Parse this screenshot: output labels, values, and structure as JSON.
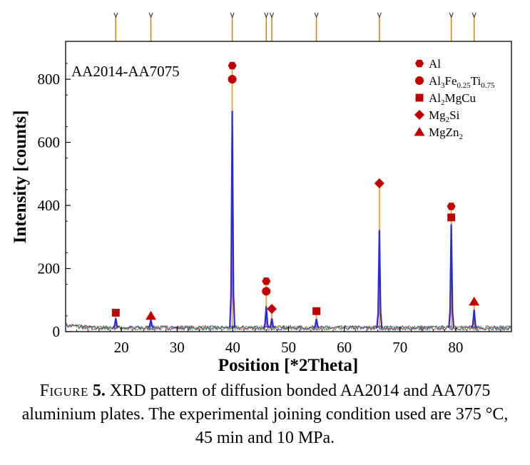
{
  "chart_data": {
    "type": "line",
    "title": "AA2014-AA7075",
    "xlabel": "Position [*2Theta]",
    "ylabel": "Intensity [counts]",
    "xlim": [
      10,
      90
    ],
    "ylim": [
      0,
      920
    ],
    "x_ticks": [
      20,
      30,
      40,
      50,
      60,
      70,
      80
    ],
    "y_ticks": [
      0,
      200,
      400,
      600,
      800
    ],
    "grid": false,
    "legend_position": "top-right",
    "baseline": 12,
    "series": [
      {
        "color": "#3333cc"
      },
      {
        "color": "#c0392b"
      },
      {
        "color": "#2e8b3d"
      }
    ],
    "peaks": [
      {
        "x": 19.0,
        "y": 42,
        "markers": [
          {
            "phase": "Al2MgCu",
            "y": 60
          }
        ]
      },
      {
        "x": 25.3,
        "y": 38,
        "markers": [
          {
            "phase": "MgZn2",
            "y": 50
          }
        ]
      },
      {
        "x": 39.9,
        "y": 700,
        "markers": [
          {
            "phase": "Al3Fe0.25Ti0.75",
            "y": 800
          },
          {
            "phase": "Al",
            "y": 843
          }
        ]
      },
      {
        "x": 46.0,
        "y": 80,
        "markers": [
          {
            "phase": "Al3Fe0.25Ti0.75",
            "y": 128
          },
          {
            "phase": "Al",
            "y": 160
          }
        ]
      },
      {
        "x": 47.0,
        "y": 42,
        "markers": [
          {
            "phase": "Mg2Si",
            "y": 72
          }
        ]
      },
      {
        "x": 55.0,
        "y": 40,
        "markers": [
          {
            "phase": "Al2MgCu",
            "y": 65
          }
        ]
      },
      {
        "x": 66.3,
        "y": 322,
        "markers": [
          {
            "phase": "Mg2Si",
            "y": 470
          }
        ]
      },
      {
        "x": 79.2,
        "y": 340,
        "markers": [
          {
            "phase": "Al2MgCu",
            "y": 362
          },
          {
            "phase": "Al",
            "y": 397
          }
        ]
      },
      {
        "x": 83.3,
        "y": 70,
        "markers": [
          {
            "phase": "MgZn2",
            "y": 95
          }
        ]
      }
    ],
    "reference_ticks": [
      19.0,
      25.3,
      39.9,
      46.0,
      47.0,
      55.0,
      66.3,
      79.2,
      83.3
    ],
    "legend": [
      {
        "phase": "Al",
        "shape": "hexagon",
        "label": "Al",
        "sub": []
      },
      {
        "phase": "Al3Fe0.25Ti0.75",
        "shape": "circle",
        "label": "Al",
        "sub": [
          [
            "3",
            "Fe"
          ],
          [
            "0.25",
            "Ti"
          ],
          [
            "0.75",
            ""
          ]
        ]
      },
      {
        "phase": "Al2MgCu",
        "shape": "square",
        "label": "Al",
        "sub": [
          [
            "2",
            "MgCu"
          ]
        ]
      },
      {
        "phase": "Mg2Si",
        "shape": "diamond",
        "label": "Mg",
        "sub": [
          [
            "2",
            "Si"
          ]
        ]
      },
      {
        "phase": "MgZn2",
        "shape": "triangle",
        "label": "MgZn",
        "sub": [
          [
            "2",
            ""
          ]
        ]
      }
    ],
    "marker_color": "#c00000",
    "stick_color": "#e8a040",
    "ref_tick_color": "#c98a2a"
  },
  "caption": {
    "label": "Figure",
    "number": "5.",
    "text": "XRD pattern of diffusion bonded AA2014 and AA7075 aluminium plates. The experimental joining condition used are 375 °C, 45 min and 10 MPa."
  }
}
